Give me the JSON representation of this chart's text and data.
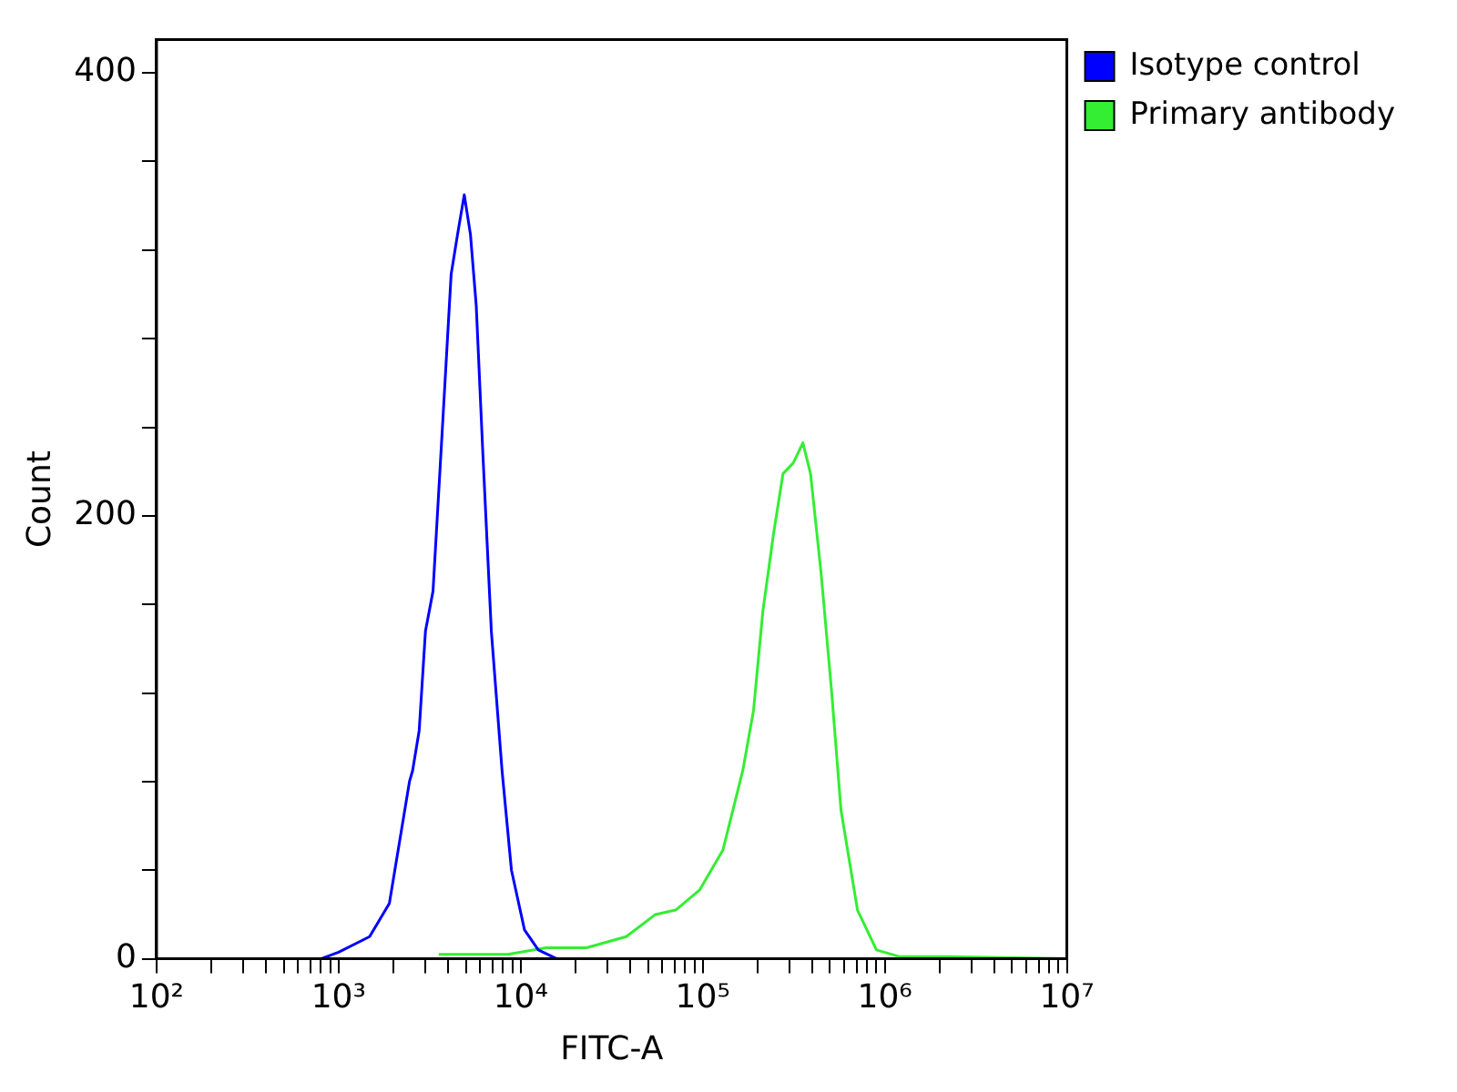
{
  "chart_data": {
    "type": "line",
    "xlabel": "FITC-A",
    "ylabel": "Count",
    "log": "x",
    "grid": false,
    "legend": "right",
    "marker": "none",
    "line_style": "solid",
    "xlim": [
      100,
      10000000
    ],
    "ylim": [
      0,
      415
    ],
    "xticks": [
      {
        "value": 100,
        "label": "10²"
      },
      {
        "value": 200,
        "label": null
      },
      {
        "value": 300,
        "label": null
      },
      {
        "value": 400,
        "label": null
      },
      {
        "value": 500,
        "label": null
      },
      {
        "value": 600,
        "label": null
      },
      {
        "value": 700,
        "label": null
      },
      {
        "value": 800,
        "label": null
      },
      {
        "value": 900,
        "label": null
      },
      {
        "value": 1000,
        "label": "10³"
      },
      {
        "value": 2000,
        "label": null
      },
      {
        "value": 3000,
        "label": null
      },
      {
        "value": 4000,
        "label": null
      },
      {
        "value": 5000,
        "label": null
      },
      {
        "value": 6000,
        "label": null
      },
      {
        "value": 7000,
        "label": null
      },
      {
        "value": 8000,
        "label": null
      },
      {
        "value": 9000,
        "label": null
      },
      {
        "value": 10000,
        "label": "10⁴"
      },
      {
        "value": 20000,
        "label": null
      },
      {
        "value": 30000,
        "label": null
      },
      {
        "value": 40000,
        "label": null
      },
      {
        "value": 50000,
        "label": null
      },
      {
        "value": 60000,
        "label": null
      },
      {
        "value": 70000,
        "label": null
      },
      {
        "value": 80000,
        "label": null
      },
      {
        "value": 90000,
        "label": null
      },
      {
        "value": 100000,
        "label": "10⁵"
      },
      {
        "value": 200000,
        "label": null
      },
      {
        "value": 300000,
        "label": null
      },
      {
        "value": 400000,
        "label": null
      },
      {
        "value": 500000,
        "label": null
      },
      {
        "value": 600000,
        "label": null
      },
      {
        "value": 700000,
        "label": null
      },
      {
        "value": 800000,
        "label": null
      },
      {
        "value": 900000,
        "label": null
      },
      {
        "value": 1000000,
        "label": "10⁶"
      },
      {
        "value": 2000000,
        "label": null
      },
      {
        "value": 3000000,
        "label": null
      },
      {
        "value": 4000000,
        "label": null
      },
      {
        "value": 5000000,
        "label": null
      },
      {
        "value": 6000000,
        "label": null
      },
      {
        "value": 7000000,
        "label": null
      },
      {
        "value": 8000000,
        "label": null
      },
      {
        "value": 9000000,
        "label": null
      },
      {
        "value": 10000000,
        "label": "10⁷"
      }
    ],
    "yticks": [
      0,
      {
        "value": 40,
        "label": null
      },
      {
        "value": 80,
        "label": null
      },
      {
        "value": 120,
        "label": null
      },
      {
        "value": 160,
        "label": null
      },
      200,
      {
        "value": 240,
        "label": null
      },
      {
        "value": 280,
        "label": null
      },
      {
        "value": 320,
        "label": null
      },
      {
        "value": 360,
        "label": null
      },
      400
    ],
    "series": [
      {
        "name": "Isotype control",
        "color": "#0000ff",
        "x": [
          800,
          1000,
          1480,
          1900,
          2450,
          2550,
          2770,
          3000,
          3300,
          3700,
          4150,
          4500,
          4900,
          5300,
          5700,
          6200,
          6900,
          7900,
          8900,
          10500,
          12500,
          15800
        ],
        "values": [
          0,
          3,
          10,
          25,
          80,
          85,
          103,
          148,
          166,
          237,
          309,
          327,
          345,
          327,
          295,
          228,
          148,
          85,
          40,
          13,
          4,
          0
        ]
      },
      {
        "name": "Primary antibody",
        "color": "#33ee33",
        "x": [
          3550,
          8500,
          13800,
          23000,
          38000,
          55000,
          71000,
          96000,
          129000,
          166000,
          190000,
          214000,
          245000,
          276000,
          315000,
          355000,
          391000,
          447000,
          510000,
          575000,
          708000,
          900000,
          1200000,
          2240000,
          10000000
        ],
        "values": [
          2,
          2,
          5,
          5,
          10,
          20,
          22,
          31,
          49,
          85,
          112,
          157,
          192,
          219,
          224,
          233,
          219,
          174,
          121,
          67,
          22,
          4,
          1,
          1,
          0
        ]
      }
    ]
  }
}
